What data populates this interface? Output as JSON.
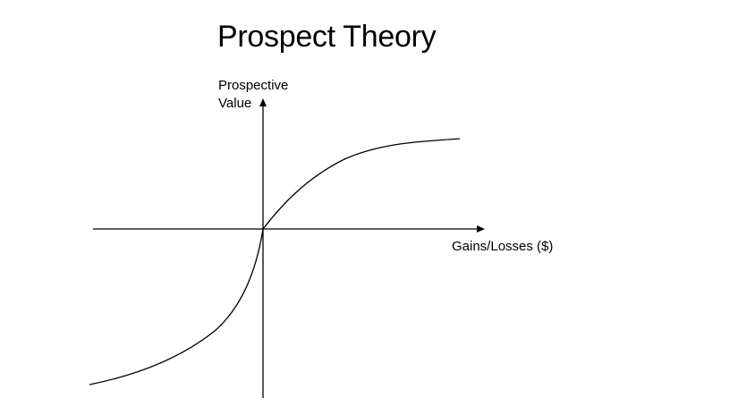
{
  "title": "Prospect Theory",
  "axes": {
    "y_label_line1": "Prospective",
    "y_label_line2": "Value",
    "x_label": "Gains/Losses ($)"
  },
  "colors": {
    "stroke": "#000000",
    "background": "#ffffff"
  },
  "curve": {
    "shape": "s-shaped value function",
    "gains_side": "concave",
    "losses_side": "convex, steeper"
  }
}
